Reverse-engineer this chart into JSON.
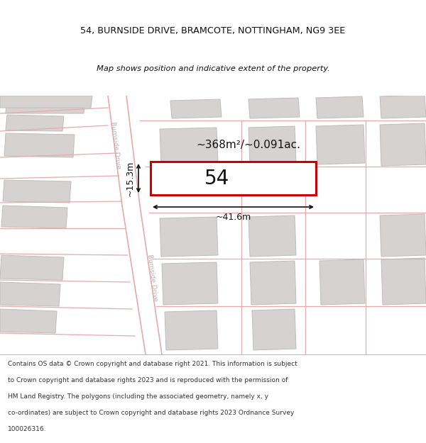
{
  "title_line1": "54, BURNSIDE DRIVE, BRAMCOTE, NOTTINGHAM, NG9 3EE",
  "title_line2": "Map shows position and indicative extent of the property.",
  "footer_text": "Contains OS data © Crown copyright and database right 2021. This information is subject to Crown copyright and database rights 2023 and is reproduced with the permission of HM Land Registry. The polygons (including the associated geometry, namely x, y co-ordinates) are subject to Crown copyright and database rights 2023 Ordnance Survey 100026316.",
  "area_label": "~368m²/~0.091ac.",
  "width_label": "~41.6m",
  "height_label": "~15.3m",
  "plot_number": "54",
  "map_bg": "#f2f0f0",
  "building_fill": "#d6d2d2",
  "building_edge": "#c0bcbc",
  "plot_fill": "#ffffff",
  "plot_edge": "#cc0000",
  "road_line_color": "#e8aaaa",
  "dimension_color": "#111111",
  "road_label_color": "#b8b0b0",
  "title_color": "#111111",
  "footer_color": "#333333",
  "title_bg": "#ffffff",
  "footer_bg": "#ffffff"
}
